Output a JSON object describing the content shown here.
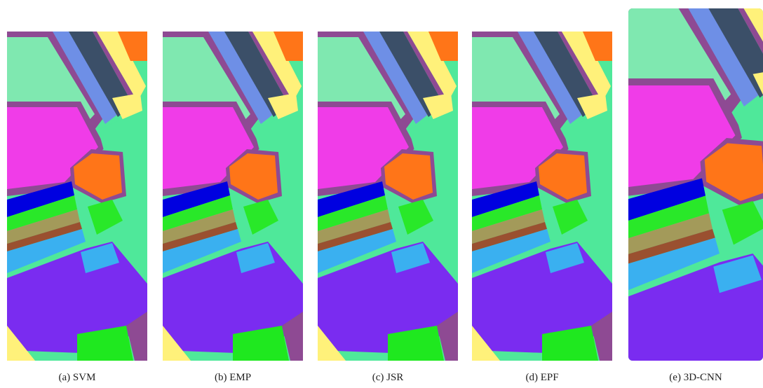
{
  "panels": [
    {
      "caption": "(a) SVM"
    },
    {
      "caption": "(b) EMP"
    },
    {
      "caption": "(c) JSR"
    },
    {
      "caption": "(d) EPF"
    },
    {
      "caption": "(e) 3D-CNN"
    }
  ]
}
